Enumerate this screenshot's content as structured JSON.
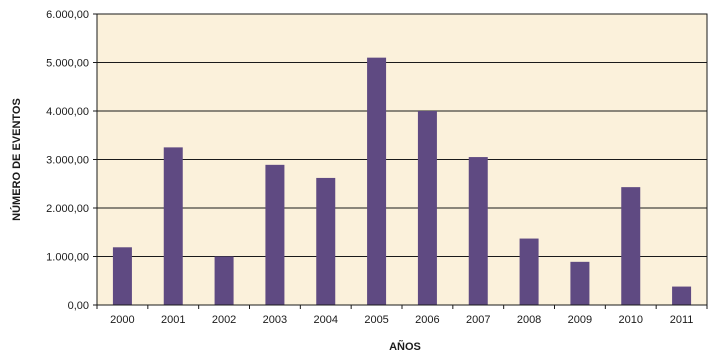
{
  "chart_data": {
    "type": "bar",
    "title": "",
    "xlabel": "AÑOS",
    "ylabel": "NÚMERO DE EVENTOS",
    "categories": [
      "2000",
      "2001",
      "2002",
      "2003",
      "2004",
      "2005",
      "2006",
      "2007",
      "2008",
      "2009",
      "2010",
      "2011"
    ],
    "values": [
      1190,
      3250,
      1000,
      2890,
      2620,
      5100,
      4000,
      3050,
      1370,
      890,
      2430,
      380
    ],
    "ylim": [
      0,
      6000
    ],
    "y_ticks": [
      0,
      1000,
      2000,
      3000,
      4000,
      5000,
      6000
    ],
    "y_tick_labels": [
      "0,00",
      "1.000,00",
      "2.000,00",
      "3.000,00",
      "4.000,00",
      "5.000,00",
      "6.000,00"
    ],
    "grid": true,
    "legend": "none",
    "colors": {
      "bar": "#5f4a82",
      "plot_background": "#fbf1db",
      "grid": "#1a1a1a",
      "frame": "#1a1a1a"
    }
  }
}
